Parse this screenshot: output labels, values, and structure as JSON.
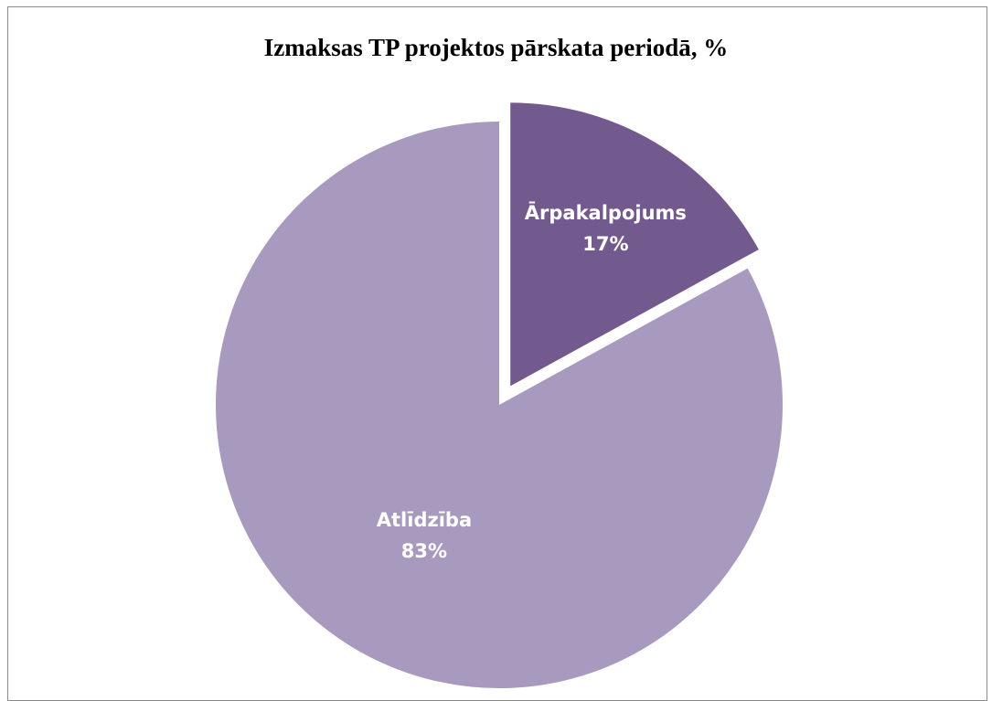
{
  "chart_data": {
    "type": "pie",
    "title": "Izmaksas TP projektos pārskata periodā, %",
    "slices": [
      {
        "label": "Ārpakalpojums",
        "value": 17,
        "value_label": "17%",
        "color": "#725a8e",
        "exploded": true
      },
      {
        "label": "Atlīdzība",
        "value": 83,
        "value_label": "83%",
        "color": "#a89abe",
        "exploded": false
      }
    ],
    "legend": "none",
    "data_labels": "inside"
  }
}
